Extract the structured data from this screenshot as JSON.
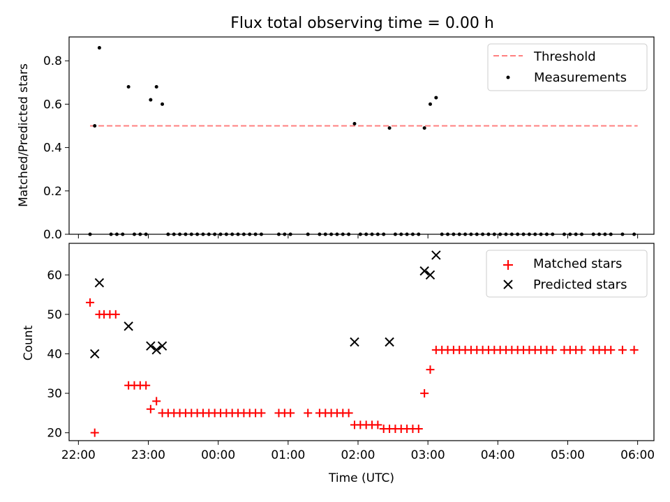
{
  "chart_data": [
    {
      "type": "scatter",
      "title": "Flux total observing time = 0.00 h",
      "xlabel": "",
      "ylabel": "Matched/Predicted stars",
      "xlim": [
        "21:52",
        "06:14"
      ],
      "ylim": [
        0,
        0.91
      ],
      "yticks": [
        0.0,
        0.2,
        0.4,
        0.6,
        0.8
      ],
      "ytick_labels": [
        "0.0",
        "0.2",
        "0.4",
        "0.6",
        "0.8"
      ],
      "grid": false,
      "legend_position": "top-right",
      "legend": [
        "Threshold",
        "Measurements"
      ],
      "threshold": {
        "name": "Threshold",
        "value": 0.5,
        "x_start": "22:10",
        "x_end": "06:00",
        "color": "#ff7f7f",
        "style": "dashed"
      },
      "series": [
        {
          "name": "Measurements",
          "color": "#000000",
          "points": [
            [
              "22:10",
              0
            ],
            [
              "22:14",
              0.5
            ],
            [
              "22:18",
              0.86
            ],
            [
              "22:28",
              0
            ],
            [
              "22:33",
              0
            ],
            [
              "22:38",
              0
            ],
            [
              "22:43",
              0.68
            ],
            [
              "22:48",
              0
            ],
            [
              "22:53",
              0
            ],
            [
              "22:58",
              0
            ],
            [
              "23:02",
              0.62
            ],
            [
              "23:07",
              0.68
            ],
            [
              "23:12",
              0.6
            ],
            [
              "23:17",
              0
            ],
            [
              "23:22",
              0
            ],
            [
              "23:27",
              0
            ],
            [
              "23:32",
              0
            ],
            [
              "23:37",
              0
            ],
            [
              "23:42",
              0
            ],
            [
              "23:47",
              0
            ],
            [
              "23:52",
              0
            ],
            [
              "23:57",
              0
            ],
            [
              "00:02",
              0
            ],
            [
              "00:07",
              0
            ],
            [
              "00:12",
              0
            ],
            [
              "00:17",
              0
            ],
            [
              "00:22",
              0
            ],
            [
              "00:27",
              0
            ],
            [
              "00:32",
              0
            ],
            [
              "00:37",
              0
            ],
            [
              "00:52",
              0
            ],
            [
              "00:57",
              0
            ],
            [
              "01:02",
              0
            ],
            [
              "01:17",
              0
            ],
            [
              "01:27",
              0
            ],
            [
              "01:32",
              0
            ],
            [
              "01:37",
              0
            ],
            [
              "01:42",
              0
            ],
            [
              "01:47",
              0
            ],
            [
              "01:52",
              0
            ],
            [
              "01:57",
              0.51
            ],
            [
              "02:02",
              0
            ],
            [
              "02:07",
              0
            ],
            [
              "02:12",
              0
            ],
            [
              "02:17",
              0
            ],
            [
              "02:22",
              0
            ],
            [
              "02:27",
              0.49
            ],
            [
              "02:32",
              0
            ],
            [
              "02:37",
              0
            ],
            [
              "02:42",
              0
            ],
            [
              "02:47",
              0
            ],
            [
              "02:52",
              0
            ],
            [
              "02:57",
              0.49
            ],
            [
              "03:02",
              0.6
            ],
            [
              "03:07",
              0.63
            ],
            [
              "03:12",
              0
            ],
            [
              "03:17",
              0
            ],
            [
              "03:22",
              0
            ],
            [
              "03:27",
              0
            ],
            [
              "03:32",
              0
            ],
            [
              "03:37",
              0
            ],
            [
              "03:42",
              0
            ],
            [
              "03:47",
              0
            ],
            [
              "03:52",
              0
            ],
            [
              "03:57",
              0
            ],
            [
              "04:02",
              0
            ],
            [
              "04:07",
              0
            ],
            [
              "04:12",
              0
            ],
            [
              "04:17",
              0
            ],
            [
              "04:22",
              0
            ],
            [
              "04:27",
              0
            ],
            [
              "04:32",
              0
            ],
            [
              "04:37",
              0
            ],
            [
              "04:42",
              0
            ],
            [
              "04:47",
              0
            ],
            [
              "04:57",
              0
            ],
            [
              "05:02",
              0
            ],
            [
              "05:07",
              0
            ],
            [
              "05:12",
              0
            ],
            [
              "05:22",
              0
            ],
            [
              "05:27",
              0
            ],
            [
              "05:32",
              0
            ],
            [
              "05:37",
              0
            ],
            [
              "05:47",
              0
            ],
            [
              "05:57",
              0
            ]
          ]
        }
      ]
    },
    {
      "type": "scatter",
      "title": "",
      "xlabel": "Time (UTC)",
      "ylabel": "Count",
      "xlim": [
        "21:52",
        "06:14"
      ],
      "ylim": [
        18,
        68
      ],
      "xtick_labels": [
        "22:00",
        "23:00",
        "00:00",
        "01:00",
        "02:00",
        "03:00",
        "04:00",
        "05:00",
        "06:00"
      ],
      "yticks": [
        20,
        30,
        40,
        50,
        60
      ],
      "ytick_labels": [
        "20",
        "30",
        "40",
        "50",
        "60"
      ],
      "grid": false,
      "legend_position": "top-right",
      "legend": [
        "Matched stars",
        "Predicted stars"
      ],
      "series": [
        {
          "name": "Matched stars",
          "marker": "+",
          "color": "#ff0000",
          "points": [
            [
              "22:10",
              53
            ],
            [
              "22:14",
              20
            ],
            [
              "22:18",
              50
            ],
            [
              "22:22",
              50
            ],
            [
              "22:27",
              50
            ],
            [
              "22:32",
              50
            ],
            [
              "22:43",
              32
            ],
            [
              "22:48",
              32
            ],
            [
              "22:53",
              32
            ],
            [
              "22:58",
              32
            ],
            [
              "23:02",
              26
            ],
            [
              "23:07",
              28
            ],
            [
              "23:12",
              25
            ],
            [
              "23:17",
              25
            ],
            [
              "23:22",
              25
            ],
            [
              "23:27",
              25
            ],
            [
              "23:32",
              25
            ],
            [
              "23:37",
              25
            ],
            [
              "23:42",
              25
            ],
            [
              "23:47",
              25
            ],
            [
              "23:52",
              25
            ],
            [
              "23:57",
              25
            ],
            [
              "00:02",
              25
            ],
            [
              "00:07",
              25
            ],
            [
              "00:12",
              25
            ],
            [
              "00:17",
              25
            ],
            [
              "00:22",
              25
            ],
            [
              "00:27",
              25
            ],
            [
              "00:32",
              25
            ],
            [
              "00:37",
              25
            ],
            [
              "00:52",
              25
            ],
            [
              "00:57",
              25
            ],
            [
              "01:02",
              25
            ],
            [
              "01:17",
              25
            ],
            [
              "01:27",
              25
            ],
            [
              "01:32",
              25
            ],
            [
              "01:37",
              25
            ],
            [
              "01:42",
              25
            ],
            [
              "01:47",
              25
            ],
            [
              "01:52",
              25
            ],
            [
              "01:57",
              22
            ],
            [
              "02:02",
              22
            ],
            [
              "02:07",
              22
            ],
            [
              "02:12",
              22
            ],
            [
              "02:17",
              22
            ],
            [
              "02:22",
              21
            ],
            [
              "02:27",
              21
            ],
            [
              "02:32",
              21
            ],
            [
              "02:37",
              21
            ],
            [
              "02:42",
              21
            ],
            [
              "02:47",
              21
            ],
            [
              "02:52",
              21
            ],
            [
              "02:57",
              30
            ],
            [
              "03:02",
              36
            ],
            [
              "03:07",
              41
            ],
            [
              "03:12",
              41
            ],
            [
              "03:17",
              41
            ],
            [
              "03:22",
              41
            ],
            [
              "03:27",
              41
            ],
            [
              "03:32",
              41
            ],
            [
              "03:37",
              41
            ],
            [
              "03:42",
              41
            ],
            [
              "03:47",
              41
            ],
            [
              "03:52",
              41
            ],
            [
              "03:57",
              41
            ],
            [
              "04:02",
              41
            ],
            [
              "04:07",
              41
            ],
            [
              "04:12",
              41
            ],
            [
              "04:17",
              41
            ],
            [
              "04:22",
              41
            ],
            [
              "04:27",
              41
            ],
            [
              "04:32",
              41
            ],
            [
              "04:37",
              41
            ],
            [
              "04:42",
              41
            ],
            [
              "04:47",
              41
            ],
            [
              "04:57",
              41
            ],
            [
              "05:02",
              41
            ],
            [
              "05:07",
              41
            ],
            [
              "05:12",
              41
            ],
            [
              "05:22",
              41
            ],
            [
              "05:27",
              41
            ],
            [
              "05:32",
              41
            ],
            [
              "05:37",
              41
            ],
            [
              "05:47",
              41
            ],
            [
              "05:57",
              41
            ]
          ]
        },
        {
          "name": "Predicted stars",
          "marker": "x",
          "color": "#000000",
          "points": [
            [
              "22:14",
              40
            ],
            [
              "22:18",
              58
            ],
            [
              "22:43",
              47
            ],
            [
              "23:02",
              42
            ],
            [
              "23:07",
              41
            ],
            [
              "23:12",
              42
            ],
            [
              "01:57",
              43
            ],
            [
              "02:27",
              43
            ],
            [
              "02:57",
              61
            ],
            [
              "03:02",
              60
            ],
            [
              "03:07",
              65
            ]
          ]
        }
      ]
    }
  ]
}
